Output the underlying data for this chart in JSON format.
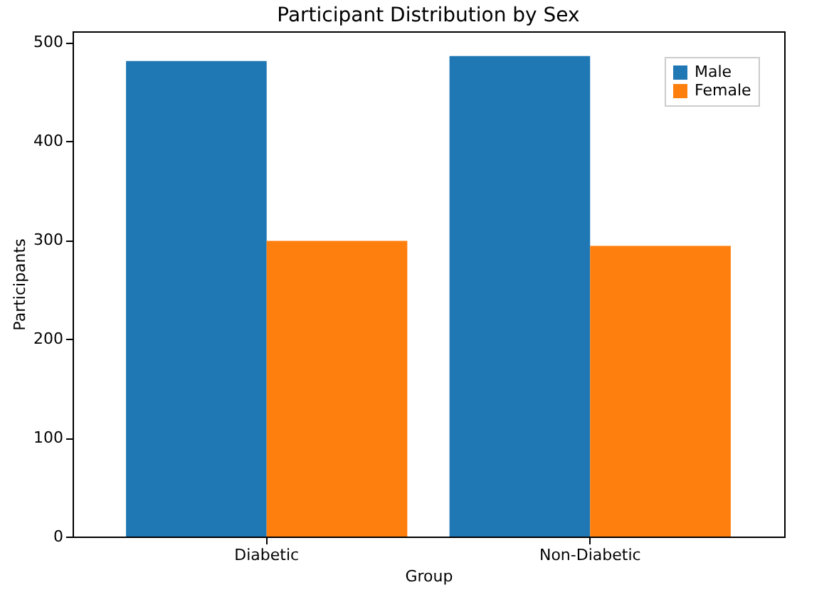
{
  "chart_data": {
    "type": "bar",
    "title": "Participant Distribution by Sex",
    "xlabel": "Group",
    "ylabel": "Participants",
    "categories": [
      "Diabetic",
      "Non-Diabetic"
    ],
    "series": [
      {
        "name": "Male",
        "color": "#1f77b4",
        "values": [
          481,
          486
        ]
      },
      {
        "name": "Female",
        "color": "#ff7f0e",
        "values": [
          299,
          294
        ]
      }
    ],
    "ylim": [
      0,
      511
    ],
    "yticks": [
      0,
      100,
      200,
      300,
      400,
      500
    ],
    "grid": false,
    "legend": "top right"
  }
}
